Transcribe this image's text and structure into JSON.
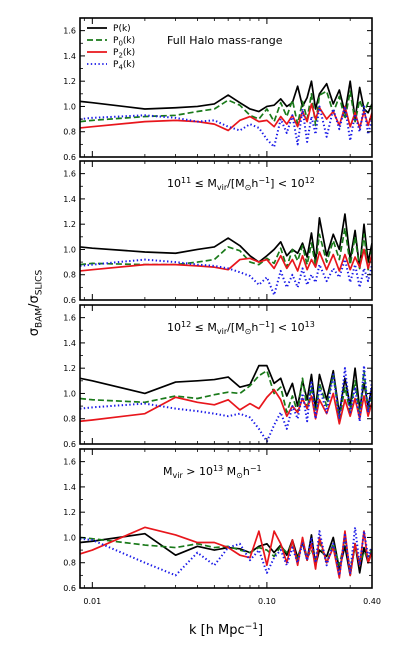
{
  "chart_data": {
    "type": "line",
    "ylabel": {
      "main": "σ",
      "num_sub": "BAM",
      "slash": "/σ",
      "den_sub": "SLICS"
    },
    "xlabel": {
      "lhs": "k",
      "unit": "[h Mpc",
      "exp": "−1",
      "close": "]"
    },
    "xscale": "log",
    "xlim": [
      0.0085,
      0.4
    ],
    "ylim": [
      0.6,
      1.7
    ],
    "xticks": [
      {
        "value": 0.01,
        "label": "0.01"
      },
      {
        "value": 0.1,
        "label": "0.10"
      },
      {
        "value": 0.4,
        "label": "0.40"
      }
    ],
    "yticks": [
      {
        "value": 0.6,
        "label": "0.6"
      },
      {
        "value": 0.8,
        "label": "0.8"
      },
      {
        "value": 1.0,
        "label": "1.0"
      },
      {
        "value": 1.2,
        "label": "1.2"
      },
      {
        "value": 1.4,
        "label": "1.4"
      },
      {
        "value": 1.6,
        "label": "1.6"
      }
    ],
    "legend": {
      "placement": "top-left",
      "entries": [
        {
          "main": "P",
          "sub": "",
          "arg": "(k)",
          "color": "#000000",
          "dash": "solid"
        },
        {
          "main": "P",
          "sub": "0",
          "arg": "(k)",
          "color": "#1a7a1a",
          "dash": "dashed"
        },
        {
          "main": "P",
          "sub": "2",
          "arg": "(k)",
          "color": "#e8161c",
          "dash": "solid"
        },
        {
          "main": "P",
          "sub": "4",
          "arg": "(k)",
          "color": "#1a1ae8",
          "dash": "dotted"
        }
      ]
    },
    "x": [
      0.0085,
      0.01,
      0.02,
      0.03,
      0.04,
      0.05,
      0.06,
      0.07,
      0.08,
      0.09,
      0.1,
      0.11,
      0.12,
      0.13,
      0.14,
      0.15,
      0.16,
      0.17,
      0.18,
      0.19,
      0.2,
      0.22,
      0.24,
      0.26,
      0.28,
      0.3,
      0.32,
      0.34,
      0.36,
      0.38,
      0.4
    ],
    "panels": [
      {
        "annotation": [
          {
            "t": "Full Halo mass-range",
            "s": "n"
          }
        ],
        "series": [
          {
            "values": [
              1.04,
              1.03,
              0.98,
              0.99,
              1.0,
              1.02,
              1.09,
              1.03,
              0.98,
              0.96,
              1.0,
              1.01,
              1.06,
              1.0,
              1.03,
              1.16,
              1.0,
              1.07,
              1.2,
              0.98,
              1.1,
              1.18,
              1.02,
              1.13,
              0.95,
              1.2,
              0.9,
              1.15,
              0.98,
              0.95,
              1.02
            ]
          },
          {
            "values": [
              0.88,
              0.89,
              0.92,
              0.93,
              0.96,
              0.98,
              1.05,
              1.01,
              0.93,
              0.9,
              0.98,
              0.88,
              1.03,
              0.92,
              1.05,
              0.86,
              1.04,
              0.9,
              1.1,
              0.85,
              1.09,
              1.12,
              0.95,
              1.08,
              0.9,
              1.12,
              0.88,
              1.05,
              0.95,
              1.03,
              0.98
            ]
          },
          {
            "values": [
              0.83,
              0.84,
              0.88,
              0.89,
              0.88,
              0.86,
              0.81,
              0.89,
              0.92,
              0.88,
              0.89,
              0.84,
              0.92,
              0.86,
              0.93,
              0.84,
              0.96,
              0.88,
              1.02,
              0.9,
              0.99,
              0.9,
              0.96,
              0.85,
              1.0,
              0.84,
              0.95,
              0.83,
              0.96,
              0.85,
              0.95
            ]
          },
          {
            "values": [
              0.9,
              0.91,
              0.93,
              0.91,
              0.88,
              0.89,
              0.84,
              0.81,
              0.86,
              0.83,
              0.74,
              0.68,
              0.9,
              0.79,
              0.93,
              0.7,
              0.98,
              0.72,
              0.92,
              0.78,
              1.0,
              0.76,
              0.98,
              0.82,
              1.0,
              0.73,
              0.94,
              0.8,
              1.0,
              0.78,
              0.9
            ]
          }
        ]
      },
      {
        "annotation": [
          {
            "t": "10",
            "s": "n"
          },
          {
            "t": "11",
            "s": "sup"
          },
          {
            "t": " ≤ M",
            "s": "n"
          },
          {
            "t": "vir",
            "s": "sub"
          },
          {
            "t": "/[M",
            "s": "n"
          },
          {
            "t": "⊙",
            "s": "sub"
          },
          {
            "t": "h",
            "s": "n"
          },
          {
            "t": "−1",
            "s": "sup"
          },
          {
            "t": "] < 10",
            "s": "n"
          },
          {
            "t": "12",
            "s": "sup"
          }
        ],
        "series": [
          {
            "values": [
              1.02,
              1.01,
              0.98,
              0.97,
              1.0,
              1.02,
              1.09,
              1.03,
              0.95,
              0.9,
              0.95,
              1.0,
              1.06,
              0.95,
              1.0,
              0.97,
              1.05,
              0.94,
              1.13,
              0.9,
              1.25,
              0.95,
              1.12,
              1.0,
              1.28,
              0.92,
              1.15,
              0.85,
              1.2,
              0.9,
              1.05
            ]
          },
          {
            "values": [
              0.88,
              0.89,
              0.88,
              0.88,
              0.9,
              0.92,
              1.02,
              0.99,
              0.9,
              0.88,
              0.93,
              0.89,
              1.01,
              0.86,
              1.0,
              0.91,
              1.03,
              0.88,
              1.05,
              0.87,
              1.12,
              0.9,
              1.07,
              0.92,
              1.17,
              0.88,
              1.1,
              0.85,
              1.12,
              0.84,
              1.0
            ]
          },
          {
            "values": [
              0.83,
              0.84,
              0.88,
              0.88,
              0.87,
              0.86,
              0.84,
              0.92,
              0.93,
              0.9,
              0.92,
              0.85,
              0.95,
              0.85,
              0.92,
              0.83,
              0.95,
              0.84,
              0.92,
              0.86,
              0.98,
              0.84,
              0.96,
              0.83,
              0.96,
              0.84,
              0.94,
              0.86,
              1.0,
              0.85,
              0.96
            ]
          },
          {
            "values": [
              0.87,
              0.88,
              0.92,
              0.9,
              0.88,
              0.87,
              0.85,
              0.82,
              0.79,
              0.72,
              0.78,
              0.64,
              0.83,
              0.7,
              0.8,
              0.7,
              0.85,
              0.72,
              0.8,
              0.74,
              0.88,
              0.75,
              0.85,
              0.78,
              0.92,
              0.74,
              0.88,
              0.7,
              0.85,
              0.75,
              0.88
            ]
          }
        ]
      },
      {
        "annotation": [
          {
            "t": "10",
            "s": "n"
          },
          {
            "t": "12",
            "s": "sup"
          },
          {
            "t": " ≤ M",
            "s": "n"
          },
          {
            "t": "vir",
            "s": "sub"
          },
          {
            "t": "/[M",
            "s": "n"
          },
          {
            "t": "⊙",
            "s": "sub"
          },
          {
            "t": "h",
            "s": "n"
          },
          {
            "t": "−1",
            "s": "sup"
          },
          {
            "t": "] < 10",
            "s": "n"
          },
          {
            "t": "13",
            "s": "sup"
          }
        ],
        "series": [
          {
            "values": [
              1.12,
              1.1,
              1.0,
              1.09,
              1.1,
              1.11,
              1.13,
              1.05,
              1.07,
              1.22,
              1.22,
              1.08,
              1.12,
              0.98,
              1.08,
              0.9,
              1.1,
              0.95,
              1.15,
              0.88,
              1.15,
              0.95,
              1.18,
              0.84,
              1.12,
              0.9,
              1.2,
              0.88,
              1.08,
              0.9,
              1.05
            ]
          },
          {
            "values": [
              0.96,
              0.95,
              0.93,
              0.98,
              0.96,
              0.99,
              1.01,
              1.0,
              1.06,
              1.14,
              1.18,
              1.0,
              1.05,
              0.85,
              0.98,
              0.85,
              1.12,
              0.88,
              1.05,
              0.82,
              1.08,
              0.9,
              1.15,
              0.8,
              1.05,
              0.85,
              1.1,
              0.82,
              1.18,
              0.85,
              0.98
            ]
          },
          {
            "values": [
              0.78,
              0.79,
              0.84,
              0.97,
              0.93,
              0.91,
              0.95,
              0.87,
              0.92,
              0.88,
              0.97,
              1.03,
              0.95,
              0.82,
              0.9,
              0.85,
              0.96,
              0.88,
              0.98,
              0.8,
              0.95,
              0.84,
              1.0,
              0.76,
              0.95,
              0.82,
              0.96,
              0.8,
              0.98,
              0.82,
              0.93
            ]
          },
          {
            "values": [
              0.88,
              0.89,
              0.92,
              0.88,
              0.86,
              0.84,
              0.82,
              0.84,
              0.81,
              0.72,
              0.62,
              0.75,
              0.85,
              0.72,
              0.9,
              0.8,
              1.0,
              0.78,
              1.1,
              0.8,
              1.05,
              0.85,
              1.15,
              0.8,
              1.2,
              0.85,
              1.05,
              0.78,
              1.22,
              0.85,
              1.1
            ]
          }
        ]
      },
      {
        "annotation": [
          {
            "t": "M",
            "s": "n"
          },
          {
            "t": "vir",
            "s": "sub"
          },
          {
            "t": " > 10",
            "s": "n"
          },
          {
            "t": "13",
            "s": "sup"
          },
          {
            "t": " M",
            "s": "n"
          },
          {
            "t": "⊙",
            "s": "sub"
          },
          {
            "t": "h",
            "s": "n"
          },
          {
            "t": "−1",
            "s": "sup"
          }
        ],
        "series": [
          {
            "values": [
              0.96,
              0.97,
              1.03,
              0.86,
              0.93,
              0.9,
              0.92,
              0.91,
              0.88,
              0.93,
              0.95,
              0.88,
              0.94,
              0.86,
              0.98,
              0.84,
              0.96,
              0.82,
              1.02,
              0.78,
              0.9,
              0.85,
              1.0,
              0.75,
              0.93,
              0.7,
              0.95,
              0.72,
              0.92,
              0.8,
              0.9
            ]
          },
          {
            "values": [
              1.0,
              0.99,
              0.94,
              0.92,
              0.95,
              0.92,
              0.93,
              0.9,
              0.88,
              0.92,
              0.9,
              0.85,
              0.93,
              0.88,
              0.95,
              0.82,
              0.98,
              0.84,
              0.9,
              0.82,
              0.96,
              0.8,
              0.95,
              0.78,
              0.98,
              0.75,
              0.92,
              0.8,
              0.88,
              0.85,
              0.9
            ]
          },
          {
            "values": [
              0.87,
              0.9,
              1.08,
              1.02,
              0.96,
              0.96,
              0.92,
              0.86,
              0.84,
              1.05,
              0.78,
              1.05,
              0.95,
              0.8,
              0.98,
              0.78,
              1.0,
              0.82,
              0.95,
              0.75,
              1.0,
              0.8,
              0.92,
              0.68,
              1.05,
              0.7,
              0.95,
              0.78,
              1.05,
              0.8,
              0.88
            ]
          },
          {
            "values": [
              0.99,
              0.98,
              0.8,
              0.7,
              0.88,
              0.78,
              0.92,
              0.95,
              0.82,
              0.9,
              0.72,
              0.84,
              0.9,
              0.78,
              0.92,
              0.8,
              0.96,
              0.82,
              1.0,
              0.8,
              1.05,
              0.78,
              0.95,
              0.7,
              1.02,
              0.72,
              1.08,
              0.78,
              1.05,
              0.85,
              0.92
            ]
          }
        ]
      }
    ]
  }
}
